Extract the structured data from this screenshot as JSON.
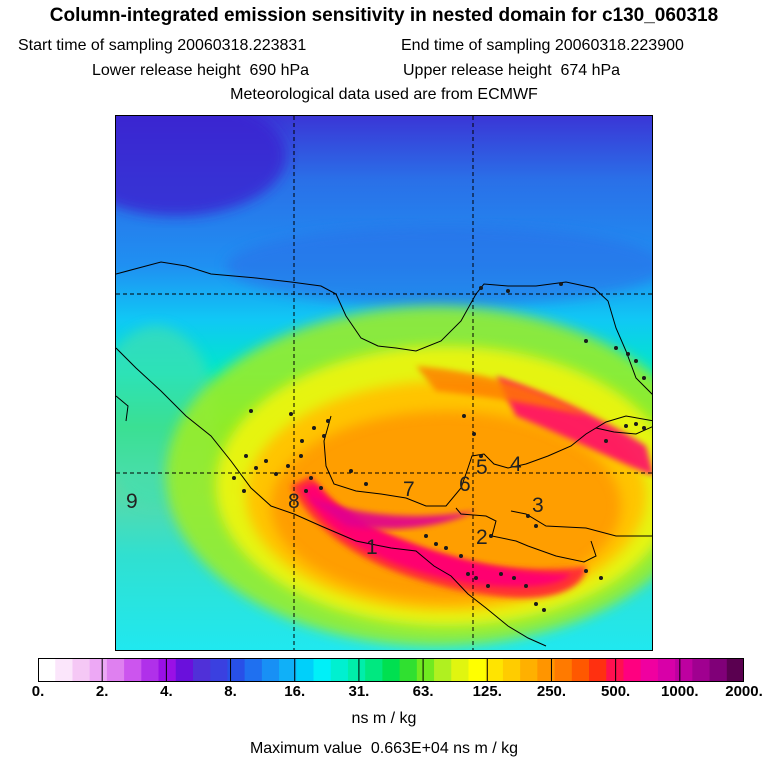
{
  "title": "Column-integrated emission sensitivity in nested domain for c130_060318",
  "sampling": {
    "start_label": "Start time of sampling",
    "start_value": "20060318.223831",
    "end_label": "End time of sampling",
    "end_value": "20060318.223900"
  },
  "release": {
    "lower_label": "Lower release height",
    "lower_value": "690 hPa",
    "upper_label": "Upper release height",
    "upper_value": "674 hPa"
  },
  "meteo_note": "Meteorological data used are from ECMWF",
  "map": {
    "region_labels": [
      "9",
      "8",
      "7",
      "6",
      "5",
      "4",
      "3",
      "2",
      "1"
    ]
  },
  "colorbar": {
    "colors": [
      "#ffffff",
      "#fbe6fb",
      "#f5c8f5",
      "#eda8f5",
      "#df80f0",
      "#cc55ee",
      "#b030ea",
      "#9a10e6",
      "#6a10dc",
      "#5030d8",
      "#3a40e0",
      "#2850e8",
      "#1f70f0",
      "#1890f5",
      "#10b0f8",
      "#00d0fa",
      "#00f0f8",
      "#00f0d0",
      "#00eeaa",
      "#00e880",
      "#00e050",
      "#30e030",
      "#70ea20",
      "#b0f020",
      "#e0f510",
      "#ffff00",
      "#ffe400",
      "#ffcc00",
      "#ffb000",
      "#ff9500",
      "#ff7a00",
      "#ff5800",
      "#ff3010",
      "#ff1050",
      "#ff0080",
      "#f000a0",
      "#d800a8",
      "#be00a0",
      "#a00090",
      "#800078",
      "#5a0050"
    ],
    "tick_labels": [
      "0.",
      "2.",
      "4.",
      "8.",
      "16.",
      "31.",
      "63.",
      "125.",
      "250.",
      "500.",
      "1000.",
      "2000."
    ],
    "units": "ns m / kg"
  },
  "maximum": {
    "label": "Maximum value",
    "value": "0.663E+04 ns m / kg"
  }
}
